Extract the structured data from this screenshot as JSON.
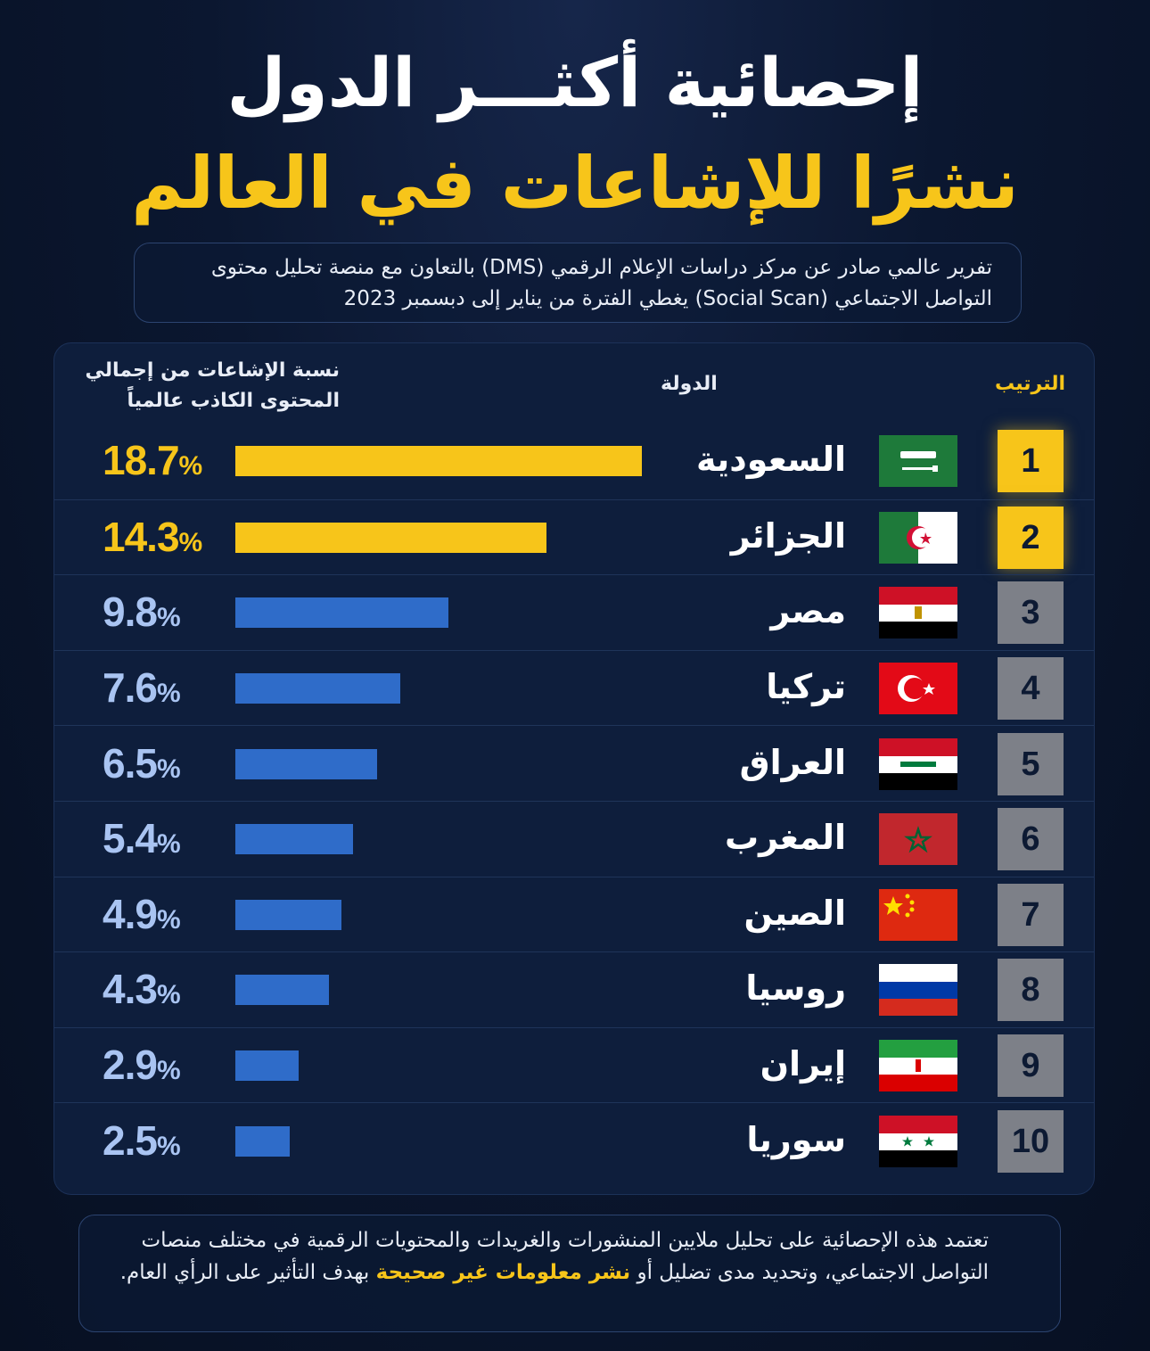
{
  "title_line1": "إحصائية أكثـــر الدول",
  "title_line2": "نشرًا للإشاعات في العالم",
  "intro": "تفرير عالمي صادر عن مركز دراسات الإعلام الرقمي (DMS) بالتعاون مع منصة تحليل محتوى التواصل الاجتماعي (Social Scan) يغطي الفترة من يناير إلى دبسمبر 2023",
  "headers": {
    "rank": "الترتيب",
    "country": "الدولة",
    "percent": "نسبة الإشاعات من إجمالي المحتوى الكاذب عالمياً"
  },
  "colors": {
    "gold": "#f7c51a",
    "blue": "#2f6cc9",
    "value_blue": "#a9c4f2"
  },
  "chart_data": {
    "type": "bar",
    "orientation": "horizontal",
    "categories": [
      "السعودية",
      "الجزائر",
      "مصر",
      "تركيا",
      "العراق",
      "المغرب",
      "الصين",
      "روسيا",
      "إيران",
      "سوريا"
    ],
    "ranks": [
      "1",
      "2",
      "3",
      "4",
      "5",
      "6",
      "7",
      "8",
      "9",
      "10"
    ],
    "values": [
      18.7,
      14.3,
      9.8,
      7.6,
      6.5,
      5.4,
      4.9,
      4.3,
      2.9,
      2.5
    ],
    "labels": [
      "18.7",
      "14.3",
      "9.8",
      "7.6",
      "6.5",
      "5.4",
      "4.9",
      "4.3",
      "2.9",
      "2.5"
    ],
    "unit": "%",
    "flags": [
      "saudi-arabia",
      "algeria",
      "egypt",
      "turkey",
      "iraq",
      "morocco",
      "china",
      "russia",
      "iran",
      "syria"
    ],
    "highlight_top": 2
  },
  "note": {
    "text_before": "تعتمد هذه الإحصائية على تحليل ملايين المنشورات والغريدات والمحتويات الرقمية في مختلف منصات التواصل الاجتماعي، وتحديد مدى تضليل أو ",
    "highlight": "نشر معلومات غير صحيحة",
    "text_after": " بهدف التأثير على الرأي العام."
  }
}
